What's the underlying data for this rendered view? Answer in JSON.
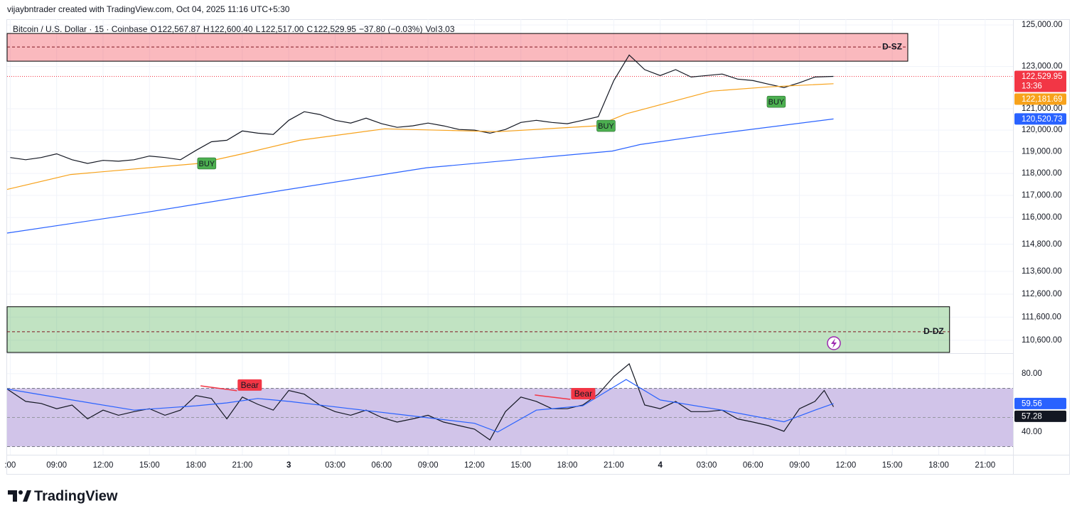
{
  "header": {
    "credit": "vijaybntrader created with TradingView.com, Oct 04, 2025 11:16 UTC+5:30"
  },
  "footer": {
    "logo": "TradingView"
  },
  "chart_data": [
    {
      "type": "line",
      "title": "Bitcoin / U.S. Dollar · 15 · Coinbase",
      "ohlc": [
        {
          "key": "O",
          "value": "122,567.87"
        },
        {
          "key": "H",
          "value": "122,600.40"
        },
        {
          "key": "L",
          "value": "122,517.00"
        },
        {
          "key": "C",
          "value": "122,529.95"
        }
      ],
      "change": "−37.80 (−0.03%)",
      "volume": {
        "key": "Vol",
        "value": "3.03"
      },
      "log_scale": true,
      "grid": true,
      "xlim": [
        5.8,
        70.8
      ],
      "xticks": [
        {
          "value": 6,
          "label": ":00"
        },
        {
          "value": 9,
          "label": "09:00"
        },
        {
          "value": 12,
          "label": "12:00"
        },
        {
          "value": 15,
          "label": "15:00"
        },
        {
          "value": 18,
          "label": "18:00"
        },
        {
          "value": 21,
          "label": "21:00"
        },
        {
          "value": 24,
          "label": "3"
        },
        {
          "value": 27,
          "label": "03:00"
        },
        {
          "value": 30,
          "label": "06:00"
        },
        {
          "value": 33,
          "label": "09:00"
        },
        {
          "value": 36,
          "label": "12:00"
        },
        {
          "value": 39,
          "label": "15:00"
        },
        {
          "value": 42,
          "label": "18:00"
        },
        {
          "value": 45,
          "label": "21:00"
        },
        {
          "value": 48,
          "label": "4"
        },
        {
          "value": 51,
          "label": "03:00"
        },
        {
          "value": 54,
          "label": "06:00"
        },
        {
          "value": 57,
          "label": "09:00"
        },
        {
          "value": 60,
          "label": "12:00"
        },
        {
          "value": 63,
          "label": "15:00"
        },
        {
          "value": 66,
          "label": "18:00"
        },
        {
          "value": 69,
          "label": "21:00"
        }
      ],
      "ylim": [
        110050,
        125280
      ],
      "yticks": [
        {
          "value": 125000,
          "label": "125,000.00"
        },
        {
          "value": 123000,
          "label": "123,000.00"
        },
        {
          "value": 121000,
          "label": "121,000.00"
        },
        {
          "value": 120000,
          "label": "120,000.00"
        },
        {
          "value": 119000,
          "label": "119,000.00"
        },
        {
          "value": 118000,
          "label": "118,000.00"
        },
        {
          "value": 117000,
          "label": "117,000.00"
        },
        {
          "value": 116000,
          "label": "116,000.00"
        },
        {
          "value": 114800,
          "label": "114,800.00"
        },
        {
          "value": 113600,
          "label": "113,600.00"
        },
        {
          "value": 112600,
          "label": "112,600.00"
        },
        {
          "value": 111600,
          "label": "111,600.00"
        },
        {
          "value": 110600,
          "label": "110,600.00"
        }
      ],
      "series": [
        {
          "color": "#131722",
          "x": [
            6,
            7,
            8,
            9,
            10,
            11,
            12,
            13,
            14,
            15,
            16,
            17,
            18,
            19,
            20,
            21,
            22,
            23,
            24,
            25,
            26,
            27,
            28,
            29,
            30,
            31,
            32,
            33,
            34,
            35,
            36,
            37,
            38,
            39,
            40,
            41,
            42,
            43,
            44,
            45,
            46,
            47,
            48,
            49,
            50,
            51,
            52,
            53,
            54,
            55,
            56,
            57,
            58,
            59.2
          ],
          "values": [
            118730,
            118630,
            118730,
            118900,
            118630,
            118460,
            118600,
            118560,
            118630,
            118800,
            118730,
            118630,
            119060,
            119460,
            119530,
            119960,
            119860,
            119800,
            120460,
            120860,
            120730,
            120460,
            120330,
            120560,
            120300,
            120130,
            120200,
            120330,
            120200,
            120030,
            120000,
            119860,
            120030,
            120360,
            120460,
            120360,
            120300,
            120460,
            120630,
            122330,
            123550,
            122850,
            122570,
            122850,
            122500,
            122570,
            122640,
            122400,
            122330,
            122160,
            122000,
            122230,
            122500,
            122529.95
          ]
        },
        {
          "color": "#f7a21b",
          "x": [
            5.8,
            9.9,
            18.2,
            21.0,
            24.7,
            30.2,
            37.5,
            43.9,
            45.8,
            51.3,
            55.0,
            59.2
          ],
          "values": [
            117270,
            117950,
            118460,
            118900,
            119530,
            120060,
            119930,
            120200,
            120760,
            121830,
            122030,
            122181.69
          ]
        },
        {
          "color": "#2962ff",
          "x": [
            5.8,
            14.5,
            23.7,
            32.9,
            44.9,
            46.7,
            51.3,
            59.2
          ],
          "values": [
            115300,
            116200,
            117240,
            118260,
            119030,
            119330,
            119800,
            120520.73
          ]
        }
      ],
      "last_labels": [
        {
          "value": 122529.95,
          "label": "122,529.95",
          "countdown": "13:36",
          "color": "#f23645"
        },
        {
          "value": 122181.69,
          "label": "122,181.69",
          "color": "#f7a21b"
        },
        {
          "value": 120520.73,
          "label": "120,520.73",
          "color": "#2962ff"
        }
      ],
      "zones": [
        {
          "label": "D-SZ",
          "top": 124587,
          "bottom": 123254,
          "mid": 123936,
          "x_end": 64.0,
          "color": "#f23645"
        },
        {
          "label": "D-DZ",
          "top": 112050,
          "bottom": 110080,
          "mid": 110970,
          "x_end": 66.7,
          "color": "#4caf50"
        }
      ],
      "annotations": [
        {
          "text": "BUY",
          "x": 18.7,
          "y": 118460
        },
        {
          "text": "BUY",
          "x": 44.5,
          "y": 120200
        },
        {
          "text": "BUY",
          "x": 55.5,
          "y": 121330
        }
      ]
    },
    {
      "type": "line",
      "ylim": [
        24.4,
        94.1
      ],
      "yticks": [
        {
          "value": 80,
          "label": "80.00"
        },
        {
          "value": 40,
          "label": "40.00"
        }
      ],
      "band": [
        30,
        70
      ],
      "midline": 50,
      "band_color": "#d1c4e9",
      "series": [
        {
          "color": "#131722",
          "x": [
            5.8,
            7,
            8,
            9,
            10,
            11,
            12,
            13,
            14,
            15,
            16,
            17,
            18,
            19,
            20,
            21,
            22,
            23,
            24,
            25,
            26,
            27,
            28,
            29,
            30,
            31,
            32,
            33,
            34,
            35,
            36,
            37,
            38,
            39,
            40,
            41,
            42,
            43,
            44,
            45,
            46,
            47,
            48,
            49,
            50,
            51,
            52,
            53,
            54,
            55,
            56,
            57,
            58,
            58.6,
            59.2
          ],
          "values": [
            69.5,
            61,
            59.6,
            56,
            58.5,
            49,
            55,
            51.5,
            54,
            56,
            51.5,
            55,
            65,
            63,
            49,
            64,
            59,
            55,
            68.5,
            66,
            58.5,
            54,
            51.5,
            55,
            50,
            46.8,
            49,
            51.5,
            46.8,
            44.4,
            42,
            34.6,
            54,
            64,
            61,
            56,
            56,
            58.5,
            66,
            78,
            86.8,
            58.5,
            56,
            61,
            54,
            54,
            55,
            49,
            46.8,
            44.4,
            40.5,
            56,
            61,
            68.5,
            57.28
          ]
        },
        {
          "color": "#2962ff",
          "x": [
            5.8,
            10,
            14,
            18,
            20,
            22,
            24,
            28,
            32,
            36,
            37.5,
            40,
            43,
            45.8,
            48,
            52,
            56,
            58,
            59.2
          ],
          "values": [
            69.5,
            62,
            55,
            58,
            60,
            63,
            61,
            56,
            51,
            46,
            40,
            55,
            58,
            76,
            62,
            55,
            47,
            55,
            59.56
          ]
        }
      ],
      "last_labels": [
        {
          "value": 59.56,
          "label": "59.56",
          "color": "#2962ff"
        },
        {
          "value": 57.28,
          "label": "57.28",
          "color": "#131722"
        }
      ],
      "divergences": [
        {
          "text": "Bear",
          "x": [
            18.3,
            20.65
          ],
          "values": [
            71.7,
            68.3
          ],
          "color": "#f23645"
        },
        {
          "text": "Bear",
          "x": [
            39.9,
            42.2
          ],
          "values": [
            65.4,
            62.4
          ],
          "color": "#f23645"
        }
      ]
    }
  ]
}
